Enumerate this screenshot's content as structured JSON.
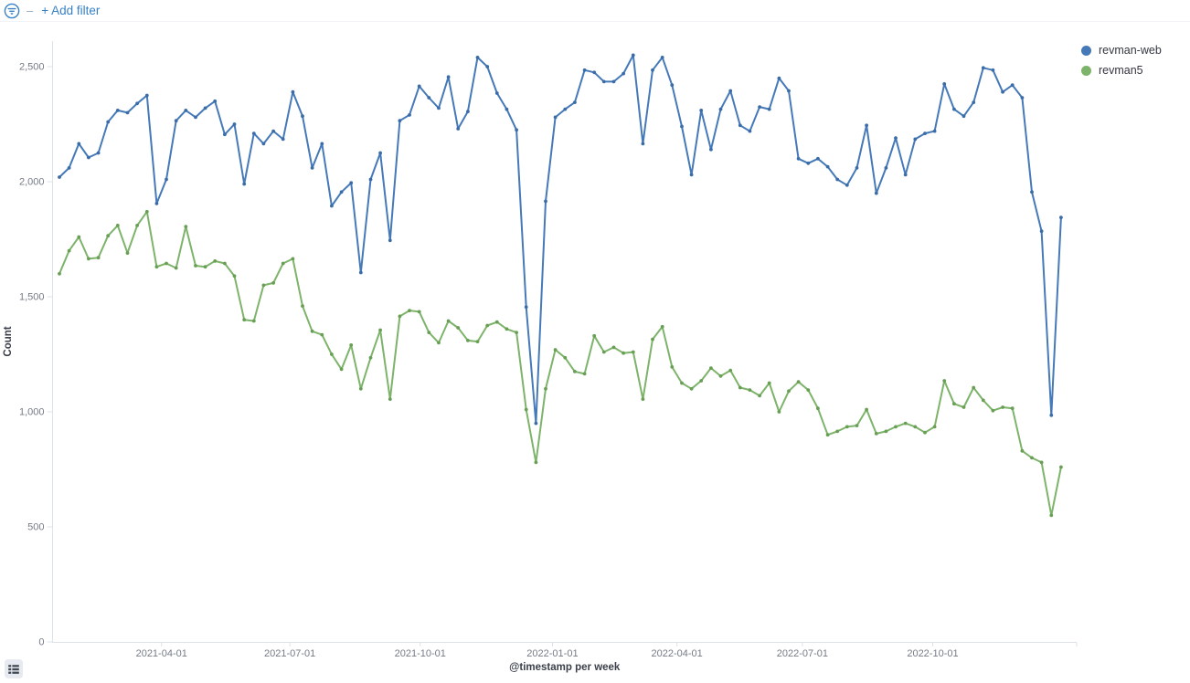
{
  "top_bar": {
    "separator": "–",
    "add_filter_label": "+ Add filter"
  },
  "colors": {
    "link_blue": "#3781c5",
    "series_blue": "#4579b8",
    "series_blue_marker": "#3a6ca8",
    "series_green": "#7db36a",
    "series_green_marker": "#689f55",
    "axis_line": "#dde1e8",
    "axis_text": "#757b86",
    "axis_title": "#3a3f4a",
    "legend_text": "#343741"
  },
  "legend": {
    "items": [
      {
        "label": "revman-web",
        "color": "#4579b8"
      },
      {
        "label": "revman5",
        "color": "#7db36a"
      }
    ]
  },
  "legend_toggle": {
    "icon": "list-icon"
  },
  "chart_data": {
    "type": "line",
    "title": "",
    "xlabel": "@timestamp per week",
    "ylabel": "Count",
    "x_unit": "week",
    "ylim": [
      0,
      2610
    ],
    "grid": false,
    "legend_position": "right",
    "y_ticks": [
      {
        "label": "0",
        "value": 0
      },
      {
        "label": "500",
        "value": 500
      },
      {
        "label": "1,000",
        "value": 1000
      },
      {
        "label": "1,500",
        "value": 1500
      },
      {
        "label": "2,000",
        "value": 2000
      },
      {
        "label": "2,500",
        "value": 2500
      }
    ],
    "x_ticks": [
      {
        "label": "2021-04-01",
        "week_index": 10.5
      },
      {
        "label": "2021-07-01",
        "week_index": 23.7
      },
      {
        "label": "2021-10-01",
        "week_index": 37.1
      },
      {
        "label": "2022-01-01",
        "week_index": 50.7
      },
      {
        "label": "2022-04-01",
        "week_index": 63.5
      },
      {
        "label": "2022-07-01",
        "week_index": 76.4
      },
      {
        "label": "2022-10-01",
        "week_index": 89.8
      }
    ],
    "series": [
      {
        "name": "revman-web",
        "color": "#4579b8",
        "marker_color": "#3a6ca8",
        "values": [
          2020,
          2060,
          2165,
          2105,
          2125,
          2260,
          2310,
          2300,
          2340,
          2375,
          1905,
          2010,
          2265,
          2310,
          2280,
          2320,
          2350,
          2205,
          2250,
          1990,
          2210,
          2165,
          2220,
          2185,
          2390,
          2285,
          2060,
          2165,
          1895,
          1955,
          1995,
          1605,
          2010,
          2125,
          1745,
          2265,
          2290,
          2415,
          2365,
          2320,
          2455,
          2230,
          2305,
          2540,
          2500,
          2385,
          2315,
          2225,
          1455,
          950,
          1915,
          2280,
          2315,
          2345,
          2485,
          2475,
          2435,
          2435,
          2470,
          2550,
          2165,
          2485,
          2540,
          2420,
          2240,
          2030,
          2310,
          2140,
          2315,
          2395,
          2245,
          2220,
          2325,
          2315,
          2450,
          2395,
          2100,
          2080,
          2100,
          2065,
          2010,
          1985,
          2060,
          2245,
          1950,
          2060,
          2190,
          2030,
          2185,
          2210,
          2220,
          2425,
          2315,
          2285,
          2345,
          2495,
          2485,
          2390,
          2420,
          2365,
          1955,
          1785,
          985,
          1845
        ]
      },
      {
        "name": "revman5",
        "color": "#7db36a",
        "marker_color": "#689f55",
        "values": [
          1600,
          1700,
          1760,
          1665,
          1670,
          1765,
          1810,
          1690,
          1810,
          1870,
          1630,
          1645,
          1625,
          1805,
          1635,
          1630,
          1655,
          1645,
          1590,
          1400,
          1395,
          1550,
          1560,
          1645,
          1665,
          1460,
          1350,
          1335,
          1250,
          1185,
          1290,
          1100,
          1235,
          1355,
          1055,
          1415,
          1440,
          1435,
          1345,
          1300,
          1395,
          1365,
          1310,
          1305,
          1375,
          1390,
          1360,
          1345,
          1010,
          780,
          1100,
          1270,
          1235,
          1175,
          1165,
          1330,
          1260,
          1280,
          1255,
          1260,
          1055,
          1315,
          1370,
          1195,
          1125,
          1100,
          1135,
          1190,
          1155,
          1180,
          1105,
          1095,
          1070,
          1125,
          1000,
          1090,
          1130,
          1095,
          1015,
          900,
          915,
          935,
          940,
          1010,
          905,
          915,
          935,
          950,
          935,
          910,
          935,
          1135,
          1035,
          1020,
          1105,
          1050,
          1005,
          1020,
          1015,
          830,
          800,
          780,
          550,
          760
        ]
      }
    ]
  }
}
